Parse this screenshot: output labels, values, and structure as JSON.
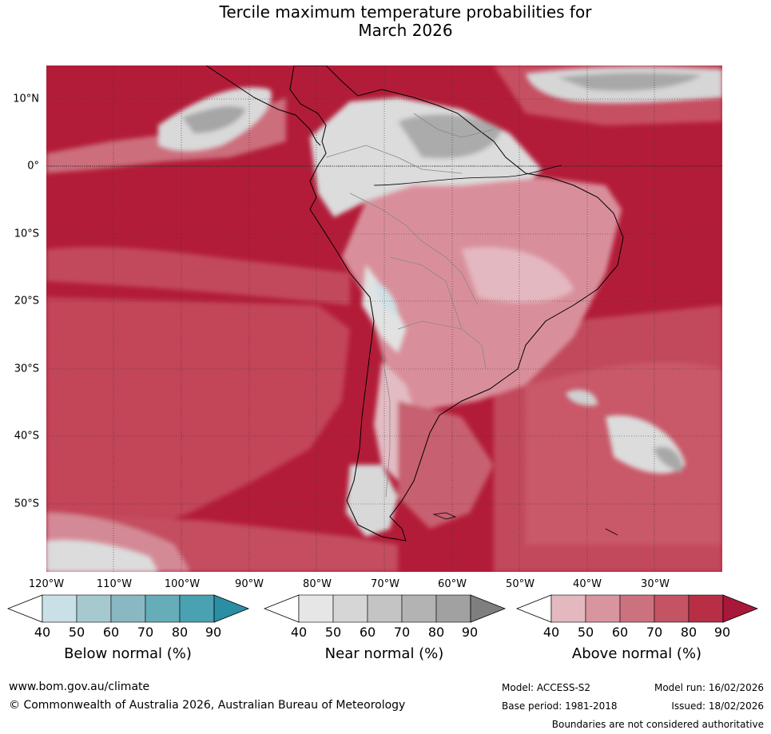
{
  "title": {
    "line1": "Tercile maximum temperature probabilities for",
    "line2": "March 2026"
  },
  "map": {
    "region": "South America and surrounding oceans",
    "lat_labels": [
      "10°N",
      "0°",
      "10°S",
      "20°S",
      "30°S",
      "40°S",
      "50°S"
    ],
    "lon_labels": [
      "120°W",
      "110°W",
      "100°W",
      "90°W",
      "80°W",
      "70°W",
      "60°W",
      "50°W",
      "40°W",
      "30°W"
    ],
    "dominant_category": "Above normal 90",
    "colors": {
      "ocean_dominant": "#b31c38",
      "land_outline": "#000000",
      "gridline": "#333333"
    }
  },
  "colorbars": [
    {
      "title": "Below normal (%)",
      "ticks": [
        "40",
        "50",
        "60",
        "70",
        "80",
        "90"
      ],
      "colors": [
        "#ffffff",
        "#c9e0e6",
        "#a6c9d0",
        "#89b8c2",
        "#66adb9",
        "#4aa1b2",
        "#2b8fa3"
      ]
    },
    {
      "title": "Near normal (%)",
      "ticks": [
        "40",
        "50",
        "60",
        "70",
        "80",
        "90"
      ],
      "colors": [
        "#ffffff",
        "#e6e6e6",
        "#d6d6d6",
        "#c4c4c4",
        "#b3b3b3",
        "#a1a1a1",
        "#7f7f7f"
      ]
    },
    {
      "title": "Above normal (%)",
      "ticks": [
        "40",
        "50",
        "60",
        "70",
        "80",
        "90"
      ],
      "colors": [
        "#ffffff",
        "#e3b8bf",
        "#d8949f",
        "#cc727f",
        "#c45464",
        "#b82f45",
        "#a8183a"
      ]
    }
  ],
  "footer": {
    "website": "www.bom.gov.au/climate",
    "copyright": "© Commonwealth of Australia 2026, Australian Bureau of Meteorology",
    "model": "Model: ACCESS-S2",
    "model_run": "Model run: 16/02/2026",
    "base_period": "Base period: 1981-2018",
    "issued": "Issued: 18/02/2026",
    "disclaimer": "Boundaries are not considered authoritative"
  }
}
